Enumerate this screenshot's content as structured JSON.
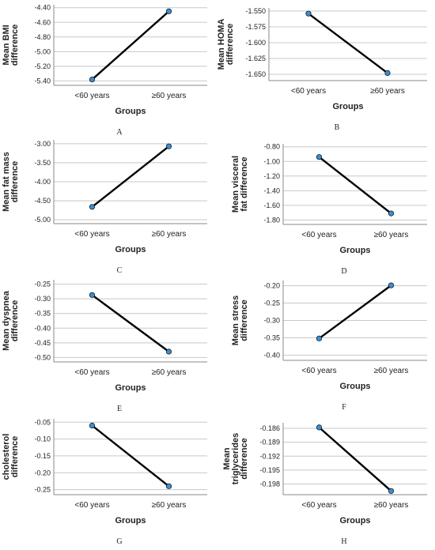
{
  "colors": {
    "line": "#000000",
    "marker": "#3a8fd6",
    "marker_edge": "#1a1a1a",
    "grid": "#c8c8c8",
    "axis": "#888888"
  },
  "chart_data": [
    {
      "type": "line",
      "panel_label": "A",
      "ylabel": [
        "Mean BMI",
        "difference"
      ],
      "xlabel": "Groups",
      "categories": [
        "<60 years",
        "≥60 years"
      ],
      "values": [
        -5.38,
        -4.45
      ],
      "ylim": [
        -5.46,
        -4.36
      ],
      "yticks": [
        -5.4,
        -5.2,
        -5.0,
        -4.8,
        -4.6,
        -4.4
      ],
      "yticklabels": [
        "-5.40",
        "-5.20",
        "-5.00",
        "-4.80",
        "-4.60",
        "-4.40"
      ],
      "grid": true
    },
    {
      "type": "line",
      "panel_label": "B",
      "ylabel": [
        "Mean HOMA",
        "difference"
      ],
      "xlabel": "Groups",
      "categories": [
        "<60 years",
        "≥60 years"
      ],
      "values": [
        -1.554,
        -1.648
      ],
      "ylim": [
        -1.66,
        -1.545
      ],
      "yticks": [
        -1.55,
        -1.575,
        -1.6,
        -1.625,
        -1.65
      ],
      "yticklabels": [
        "-1.550",
        "-1.575",
        "-1.600",
        "-1.625",
        "-1.650"
      ],
      "grid": true
    },
    {
      "type": "line",
      "panel_label": "C",
      "ylabel": [
        "Mean fat mass",
        "difference"
      ],
      "xlabel": "Groups",
      "categories": [
        "<60 years",
        "≥60 years"
      ],
      "values": [
        -4.66,
        -3.07
      ],
      "ylim": [
        -5.1,
        -2.9
      ],
      "yticks": [
        -5.0,
        -4.5,
        -4.0,
        -3.5,
        -3.0
      ],
      "yticklabels": [
        "-5.00",
        "-4.50",
        "-4.00",
        "-3.50",
        "-3.00"
      ],
      "grid": true
    },
    {
      "type": "line",
      "panel_label": "D",
      "ylabel": [
        "Mean visceral",
        "fat difference"
      ],
      "xlabel": "Groups",
      "categories": [
        "<60 years",
        "≥60 years"
      ],
      "values": [
        -0.94,
        -1.71
      ],
      "ylim": [
        -1.86,
        -0.76
      ],
      "yticks": [
        -0.8,
        -1.0,
        -1.2,
        -1.4,
        -1.6,
        -1.8
      ],
      "yticklabels": [
        "-0.80",
        "-1.00",
        "-1.20",
        "-1.40",
        "-1.60",
        "-1.80"
      ],
      "grid": true
    },
    {
      "type": "line",
      "panel_label": "E",
      "ylabel": [
        "Mean dyspnea",
        "difference"
      ],
      "xlabel": "Groups",
      "categories": [
        "<60 years",
        "≥60 years"
      ],
      "values": [
        -0.287,
        -0.48
      ],
      "ylim": [
        -0.515,
        -0.235
      ],
      "yticks": [
        -0.25,
        -0.3,
        -0.35,
        -0.4,
        -0.45,
        -0.5
      ],
      "yticklabels": [
        "-0.25",
        "-0.30",
        "-0.35",
        "-0.40",
        "-0.45",
        "-0.50"
      ],
      "grid": true
    },
    {
      "type": "line",
      "panel_label": "F",
      "ylabel": [
        "Mean stress",
        "difference"
      ],
      "xlabel": "Groups",
      "categories": [
        "<60 years",
        "≥60 years"
      ],
      "values": [
        -0.352,
        -0.199
      ],
      "ylim": [
        -0.415,
        -0.185
      ],
      "yticks": [
        -0.2,
        -0.25,
        -0.3,
        -0.35,
        -0.4
      ],
      "yticklabels": [
        "-0.20",
        "-0.25",
        "-0.30",
        "-0.35",
        "-0.40"
      ],
      "grid": true
    },
    {
      "type": "line",
      "panel_label": "G",
      "ylabel": [
        "Mean",
        "cholesterol",
        "difference"
      ],
      "xlabel": "Groups",
      "categories": [
        "<60 years",
        "≥60 years"
      ],
      "values": [
        -0.06,
        -0.24
      ],
      "ylim": [
        -0.265,
        -0.04
      ],
      "yticks": [
        -0.05,
        -0.1,
        -0.15,
        -0.2,
        -0.25
      ],
      "yticklabels": [
        "-0.05",
        "-0.10",
        "-0.15",
        "-0.20",
        "-0.25"
      ],
      "grid": true
    },
    {
      "type": "line",
      "panel_label": "H",
      "ylabel": [
        "Mean",
        "triglycerides",
        "difference"
      ],
      "xlabel": "Groups",
      "categories": [
        "<60 years",
        "≥60 years"
      ],
      "values": [
        -0.1858,
        -0.1995
      ],
      "ylim": [
        -0.2003,
        -0.1848
      ],
      "yticks": [
        -0.186,
        -0.189,
        -0.192,
        -0.195,
        -0.198
      ],
      "yticklabels": [
        "-0.186",
        "-0.189",
        "-0.192",
        "-0.195",
        "-0.198"
      ],
      "grid": true
    }
  ]
}
